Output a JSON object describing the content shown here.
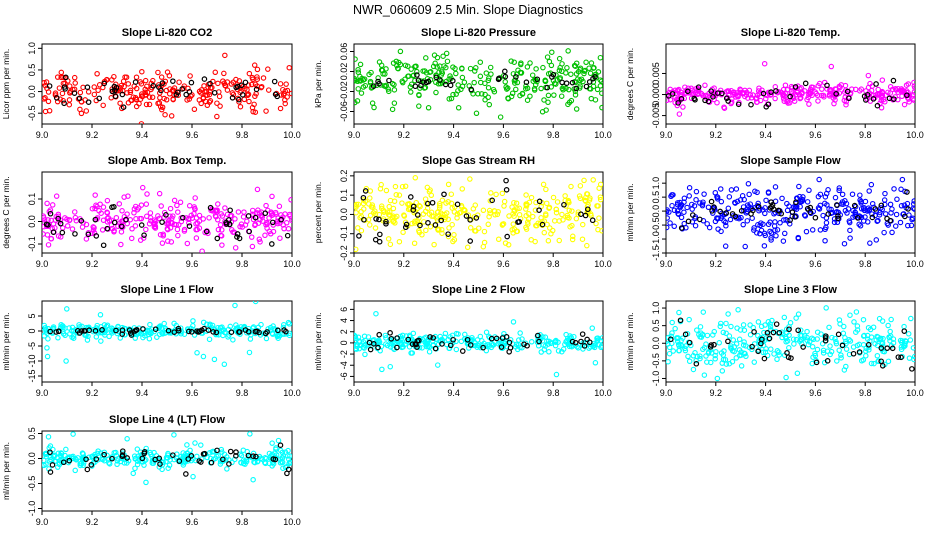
{
  "title": "NWR_060609  2.5 Min. Slope Diagnostics",
  "chart_data": [
    {
      "type": "scatter",
      "title": "Slope Li-820 CO2",
      "ylabel": "Licor ppm per min.",
      "xlim": [
        9.0,
        10.0
      ],
      "ylim": [
        -0.75,
        1.1
      ],
      "xticks": [
        "9.0",
        "9.2",
        "9.4",
        "9.6",
        "9.8",
        "10.0"
      ],
      "yticks": [
        {
          "v": -0.5,
          "t": "-0.5"
        },
        {
          "v": 0.0,
          "t": "0.0"
        },
        {
          "v": 0.5,
          "t": "0.5"
        },
        {
          "v": 1.0,
          "t": "1.0"
        }
      ],
      "color": "#ff0000",
      "spread": 0.22,
      "outlier": 0.6,
      "highlight": "#000000",
      "highlight_spread": 0.15,
      "n": 260,
      "nh": 45
    },
    {
      "type": "scatter",
      "title": "Slope Li-820 Pressure",
      "ylabel": "kPa per min.",
      "xlim": [
        9.0,
        10.0
      ],
      "ylim": [
        -0.085,
        0.075
      ],
      "xticks": [
        "9.0",
        "9.2",
        "9.4",
        "9.6",
        "9.8",
        "10.0"
      ],
      "yticks": [
        {
          "v": -0.06,
          "t": "-0.06"
        },
        {
          "v": -0.02,
          "t": "-0.02"
        },
        {
          "v": 0.02,
          "t": "0.02"
        },
        {
          "v": 0.06,
          "t": "0.06"
        }
      ],
      "color": "#00c000",
      "spread": 0.025,
      "outlier": 0.06,
      "highlight": "#000000",
      "highlight_spread": 0.008,
      "n": 300,
      "nh": 35
    },
    {
      "type": "scatter",
      "title": "Slope Li-820 Temp.",
      "ylabel": "degrees C per min.",
      "xlim": [
        9.0,
        10.0
      ],
      "ylim": [
        -0.007,
        0.012
      ],
      "xticks": [
        "9.0",
        "9.2",
        "9.4",
        "9.6",
        "9.8",
        "10.0"
      ],
      "yticks": [
        {
          "v": -0.005,
          "t": "-0.005"
        },
        {
          "v": 0.0,
          "t": "0.000"
        },
        {
          "v": 0.005,
          "t": "0.005"
        }
      ],
      "color": "#ff00ff",
      "spread": 0.0012,
      "outlier": 0.008,
      "highlight": "#000000",
      "highlight_spread": 0.0015,
      "n": 300,
      "nh": 40
    },
    {
      "type": "scatter",
      "title": "Slope Amb. Box Temp.",
      "ylabel": "degrees C per min.",
      "xlim": [
        9.0,
        10.0
      ],
      "ylim": [
        -0.14,
        0.22
      ],
      "xticks": [
        "9.0",
        "9.2",
        "9.4",
        "9.6",
        "9.8",
        "10.0"
      ],
      "yticks": [
        {
          "v": -0.1,
          "t": "-0.1"
        },
        {
          "v": 0.0,
          "t": "0.0"
        },
        {
          "v": 0.1,
          "t": "0.1"
        }
      ],
      "color": "#ff00ff",
      "spread": 0.045,
      "outlier": 0.15,
      "highlight": "#000000",
      "highlight_spread": 0.04,
      "n": 300,
      "nh": 45
    },
    {
      "type": "scatter",
      "title": "Slope Gas Stream RH",
      "ylabel": "percent per min.",
      "xlim": [
        9.0,
        10.0
      ],
      "ylim": [
        -0.2,
        0.22
      ],
      "xticks": [
        "9.0",
        "9.2",
        "9.4",
        "9.6",
        "9.8",
        "10.0"
      ],
      "yticks": [
        {
          "v": -0.2,
          "t": "-0.2"
        },
        {
          "v": -0.1,
          "t": "-0.1"
        },
        {
          "v": 0.0,
          "t": "0.0"
        },
        {
          "v": 0.1,
          "t": "0.1"
        },
        {
          "v": 0.2,
          "t": "0.2"
        }
      ],
      "color": "#ffff00",
      "spread": 0.07,
      "outlier": 0.18,
      "highlight": "#000000",
      "highlight_spread": 0.07,
      "n": 320,
      "nh": 45
    },
    {
      "type": "scatter",
      "title": "Slope Sample Flow",
      "ylabel": "ml/min per min.",
      "xlim": [
        9.0,
        10.0
      ],
      "ylim": [
        -1.5,
        1.4
      ],
      "xticks": [
        "9.0",
        "9.2",
        "9.4",
        "9.6",
        "9.8",
        "10.0"
      ],
      "yticks": [
        {
          "v": -1.5,
          "t": "-1.5"
        },
        {
          "v": -1.0,
          "t": "-1.0"
        },
        {
          "v": -0.5,
          "t": "-0.5"
        },
        {
          "v": 0.0,
          "t": "0.0"
        },
        {
          "v": 0.5,
          "t": "0.5"
        },
        {
          "v": 1.0,
          "t": "1.0"
        }
      ],
      "color": "#0000ff",
      "spread": 0.45,
      "outlier": 1.3,
      "highlight": "#000000",
      "highlight_spread": 0.25,
      "n": 320,
      "nh": 45
    },
    {
      "type": "scatter",
      "title": "Slope Line 1 Flow",
      "ylabel": "ml/min per min.",
      "xlim": [
        9.0,
        10.0
      ],
      "ylim": [
        -17,
        10
      ],
      "xticks": [
        "9.0",
        "9.2",
        "9.4",
        "9.6",
        "9.8",
        "10.0"
      ],
      "yticks": [
        {
          "v": -15,
          "t": "-15"
        },
        {
          "v": -10,
          "t": "-10"
        },
        {
          "v": -5,
          "t": "-5"
        },
        {
          "v": 0,
          "t": "0"
        },
        {
          "v": 5,
          "t": "5"
        }
      ],
      "color": "#00ffff",
      "spread": 1.2,
      "outlier": 13,
      "highlight": "#000000",
      "highlight_spread": 0.4,
      "n": 280,
      "nh": 50
    },
    {
      "type": "scatter",
      "title": "Slope Line 2 Flow",
      "ylabel": "ml/min per min.",
      "xlim": [
        9.0,
        10.0
      ],
      "ylim": [
        -7,
        7.5
      ],
      "xticks": [
        "9.0",
        "9.2",
        "9.4",
        "9.6",
        "9.8",
        "10.0"
      ],
      "yticks": [
        {
          "v": -6,
          "t": "-6"
        },
        {
          "v": -4,
          "t": "-4"
        },
        {
          "v": -2,
          "t": "-2"
        },
        {
          "v": 0,
          "t": "0"
        },
        {
          "v": 2,
          "t": "2"
        },
        {
          "v": 4,
          "t": "4"
        },
        {
          "v": 6,
          "t": "6"
        }
      ],
      "color": "#00ffff",
      "spread": 0.8,
      "outlier": 6,
      "highlight": "#000000",
      "highlight_spread": 0.9,
      "n": 280,
      "nh": 45
    },
    {
      "type": "scatter",
      "title": "Slope Line 3 Flow",
      "ylabel": "ml/min per min.",
      "xlim": [
        9.0,
        10.0
      ],
      "ylim": [
        -1.1,
        1.2
      ],
      "xticks": [
        "9.0",
        "9.2",
        "9.4",
        "9.6",
        "9.8",
        "10.0"
      ],
      "yticks": [
        {
          "v": -1.0,
          "t": "-1.0"
        },
        {
          "v": -0.5,
          "t": "-0.5"
        },
        {
          "v": 0.0,
          "t": "0.0"
        },
        {
          "v": 0.5,
          "t": "0.5"
        },
        {
          "v": 1.0,
          "t": "1.0"
        }
      ],
      "color": "#00ffff",
      "spread": 0.35,
      "outlier": 1.0,
      "highlight": "#000000",
      "highlight_spread": 0.35,
      "n": 320,
      "nh": 45
    },
    {
      "type": "scatter",
      "title": "Slope Line 4 (LT) Flow",
      "ylabel": "ml/min per min.",
      "xlim": [
        9.0,
        10.0
      ],
      "ylim": [
        -1.05,
        0.55
      ],
      "xticks": [
        "9.0",
        "9.2",
        "9.4",
        "9.6",
        "9.8",
        "10.0"
      ],
      "yticks": [
        {
          "v": -1.0,
          "t": "-1.0"
        },
        {
          "v": -0.5,
          "t": "-0.5"
        },
        {
          "v": 0.0,
          "t": "0.0"
        },
        {
          "v": 0.5,
          "t": "0.5"
        }
      ],
      "color": "#00ffff",
      "spread": 0.09,
      "outlier": 0.5,
      "highlight": "#000000",
      "highlight_spread": 0.12,
      "n": 300,
      "nh": 45
    }
  ]
}
